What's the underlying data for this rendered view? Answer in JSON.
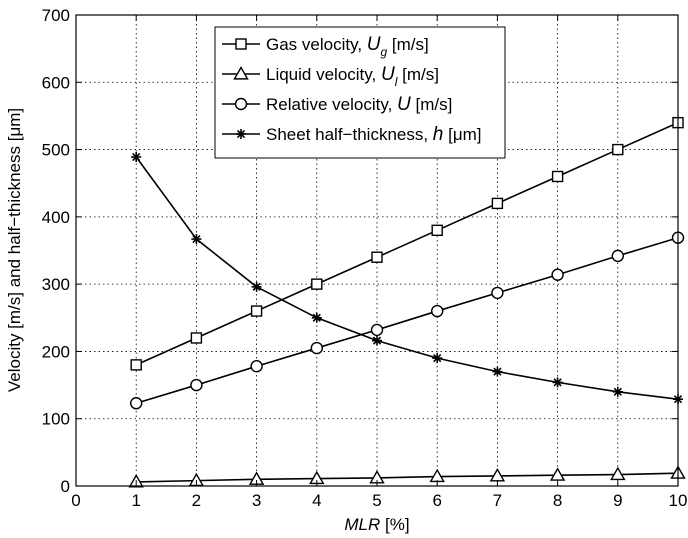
{
  "chart_data": {
    "type": "line",
    "xlabel": {
      "italic": "MLR",
      "rest": " [%]"
    },
    "ylabel": "Velocity [m/s] and half−thickness [μm]",
    "xlim": [
      0,
      10
    ],
    "ylim": [
      0,
      700
    ],
    "xticks": [
      "0",
      "1",
      "2",
      "3",
      "4",
      "5",
      "6",
      "7",
      "8",
      "9",
      "10"
    ],
    "yticks": [
      "0",
      "100",
      "200",
      "300",
      "400",
      "500",
      "600",
      "700"
    ],
    "grid": true,
    "legend_position": "top-center",
    "x": [
      1,
      2,
      3,
      4,
      5,
      6,
      7,
      8,
      9,
      10
    ],
    "series": [
      {
        "name": "Gas velocity, U_g [m/s]",
        "label_parts": [
          [
            "Gas velocity, ",
            "n"
          ],
          [
            "U",
            "i"
          ],
          [
            "g",
            "sub"
          ],
          [
            " [m/s]",
            "n"
          ]
        ],
        "marker": "square",
        "values": [
          180,
          220,
          260,
          300,
          340,
          380,
          420,
          460,
          500,
          540
        ]
      },
      {
        "name": "Liquid velocity, U_l [m/s]",
        "label_parts": [
          [
            "Liquid velocity, ",
            "n"
          ],
          [
            "U",
            "i"
          ],
          [
            "l",
            "sub"
          ],
          [
            " [m/s]",
            "n"
          ]
        ],
        "marker": "triangle",
        "values": [
          6,
          8,
          10,
          11,
          12,
          14,
          15,
          16,
          17,
          19
        ]
      },
      {
        "name": "Relative velocity, U [m/s]",
        "label_parts": [
          [
            "Relative velocity, ",
            "n"
          ],
          [
            "U",
            "i"
          ],
          [
            " [m/s]",
            "n"
          ]
        ],
        "marker": "circle",
        "values": [
          123,
          150,
          178,
          205,
          232,
          260,
          287,
          314,
          342,
          369
        ]
      },
      {
        "name": "Sheet half-thickness, h [μm]",
        "label_parts": [
          [
            "Sheet half−thickness, ",
            "n"
          ],
          [
            "h",
            "i"
          ],
          [
            " [μm]",
            "n"
          ]
        ],
        "marker": "star",
        "values": [
          489,
          367,
          296,
          250,
          216,
          190,
          170,
          154,
          140,
          129
        ]
      }
    ]
  }
}
